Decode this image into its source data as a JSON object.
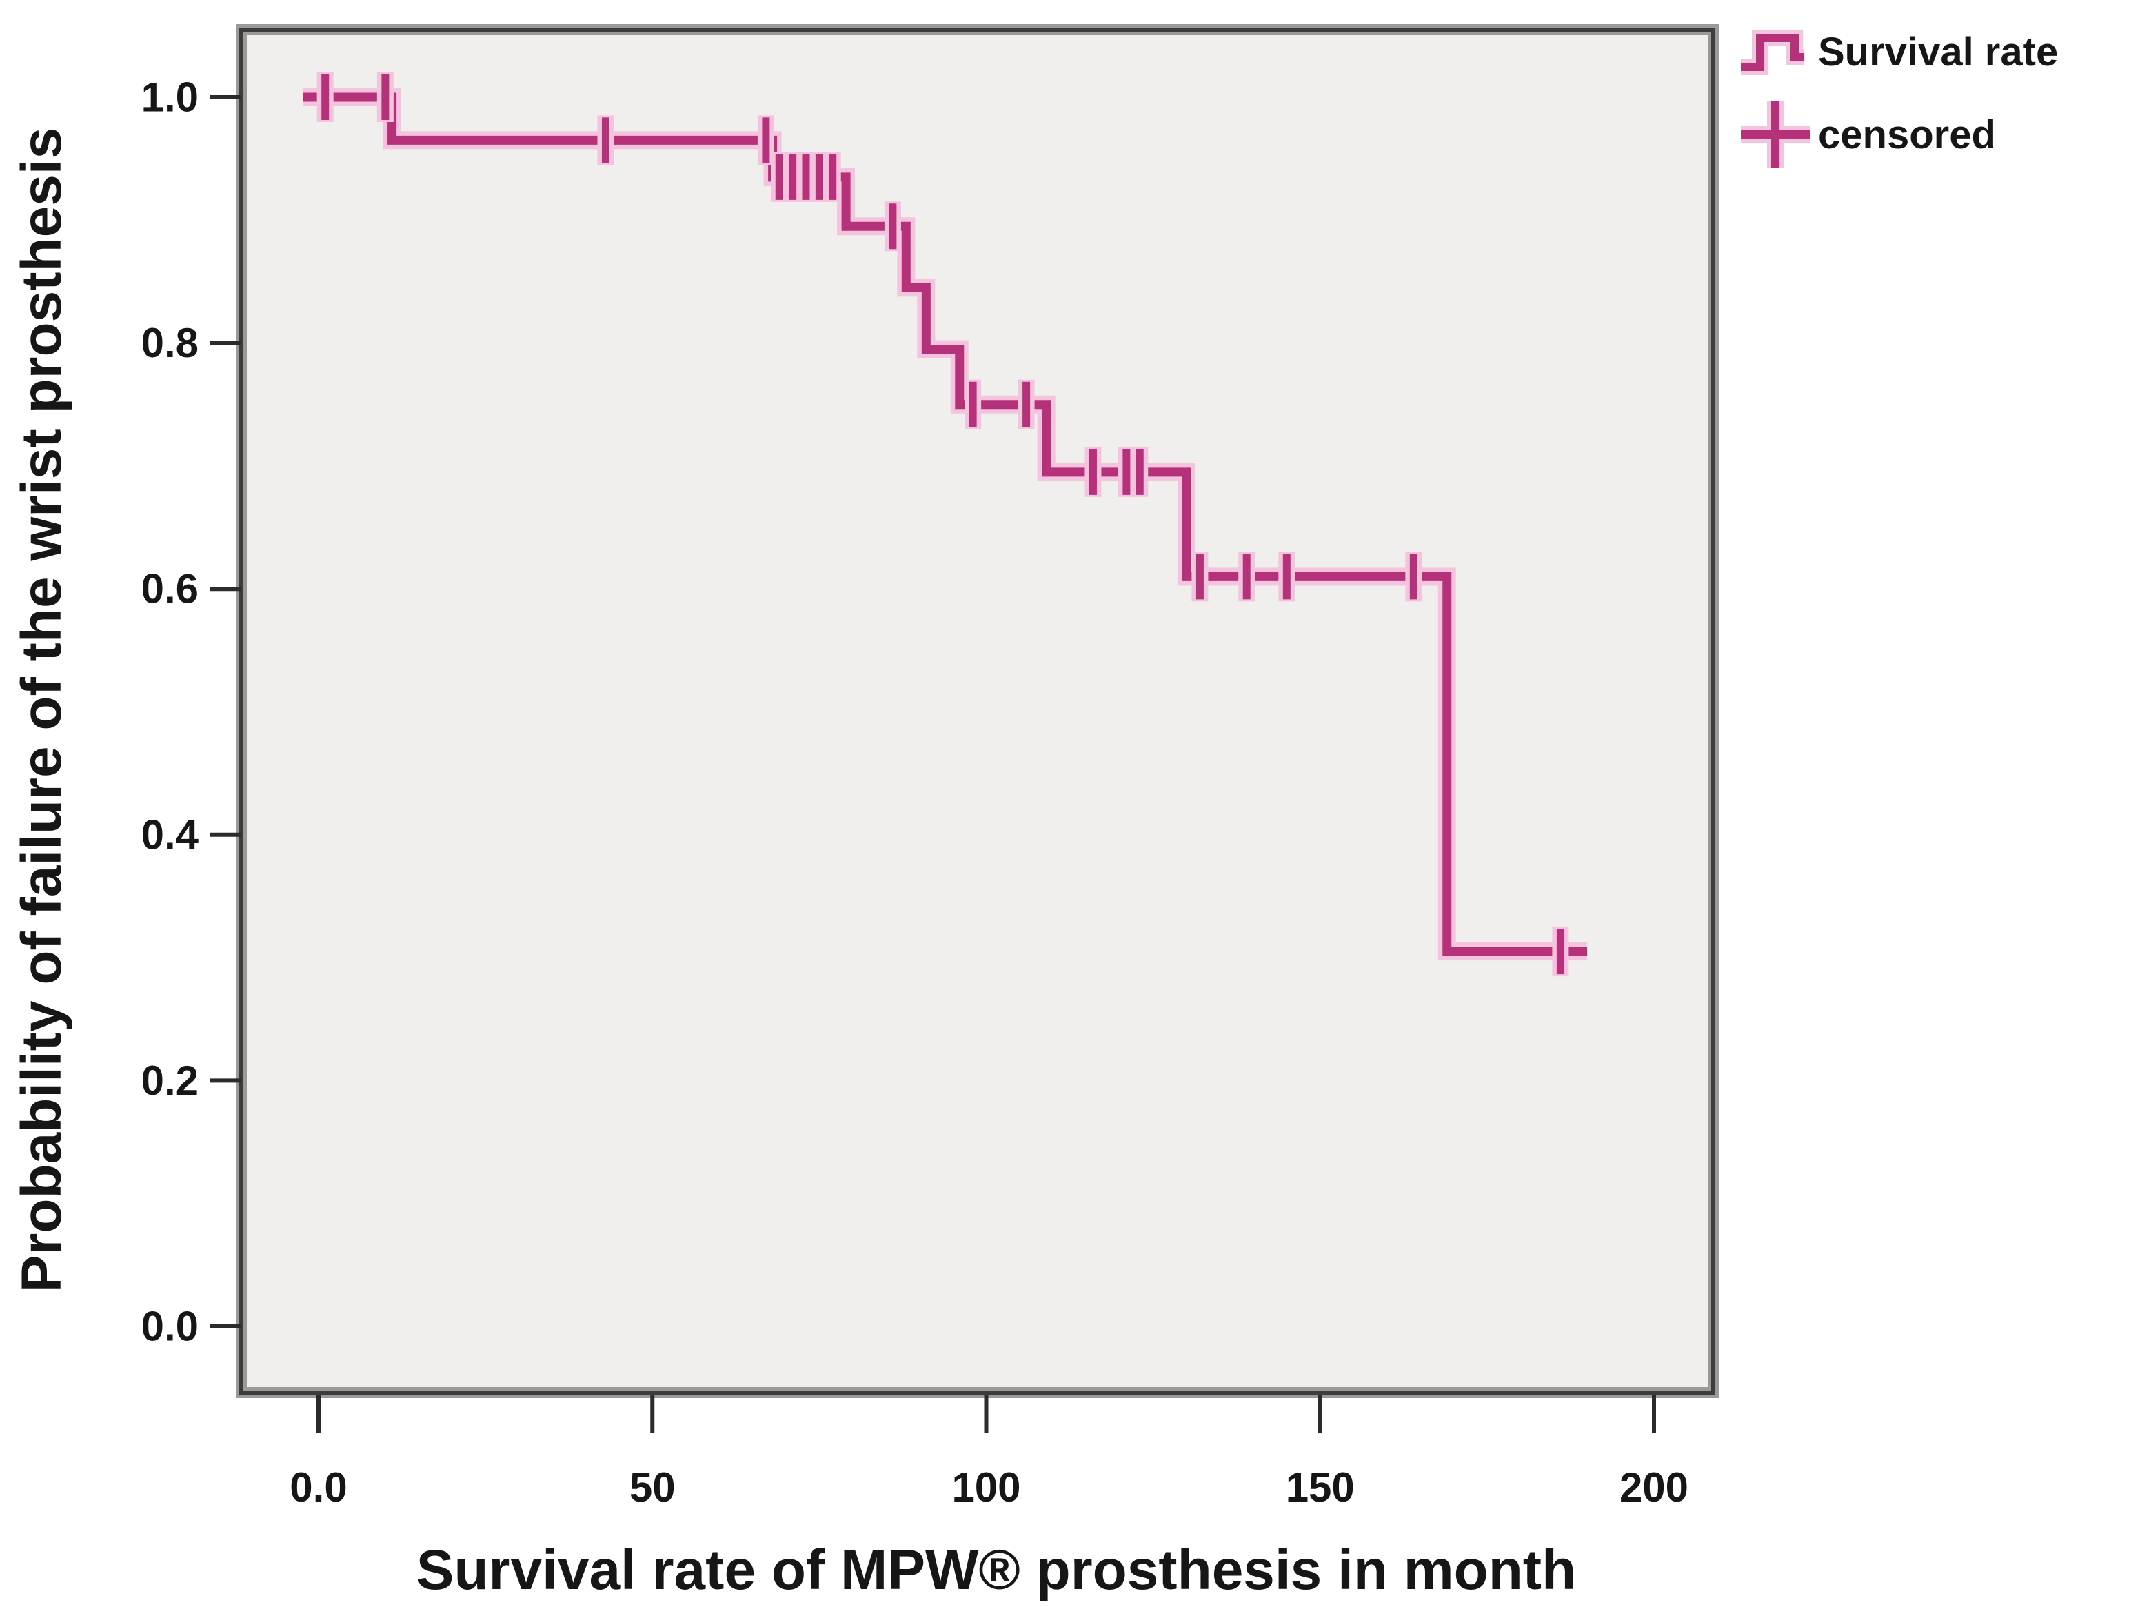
{
  "chart_data": {
    "type": "line",
    "subtype": "kaplan-meier-step",
    "title": "",
    "xlabel": "Survival rate of MPW® prosthesis in month",
    "ylabel": "Probability of failure of the wrist prosthesis",
    "xlim": [
      0,
      200
    ],
    "ylim": [
      0.0,
      1.0
    ],
    "grid": false,
    "legend_position": "top-right-outside",
    "x_ticks": [
      {
        "label": "0.0",
        "value": 0
      },
      {
        "label": "50",
        "value": 50
      },
      {
        "label": "100",
        "value": 100
      },
      {
        "label": "150",
        "value": 150
      },
      {
        "label": "200",
        "value": 200
      }
    ],
    "y_ticks": [
      {
        "label": "1.0",
        "value": 1.0
      },
      {
        "label": "0.8",
        "value": 0.8
      },
      {
        "label": "0.6",
        "value": 0.6
      },
      {
        "label": "0.4",
        "value": 0.4
      },
      {
        "label": "0.2",
        "value": 0.2
      },
      {
        "label": "0.0",
        "value": 0.0
      }
    ],
    "series": [
      {
        "name": "Survival rate",
        "steps": [
          {
            "t": 0,
            "s": 1.0
          },
          {
            "t": 11,
            "s": 0.965
          },
          {
            "t": 68,
            "s": 0.935
          },
          {
            "t": 79,
            "s": 0.895
          },
          {
            "t": 88,
            "s": 0.845
          },
          {
            "t": 91,
            "s": 0.795
          },
          {
            "t": 96,
            "s": 0.75
          },
          {
            "t": 109,
            "s": 0.695
          },
          {
            "t": 130,
            "s": 0.61
          },
          {
            "t": 169,
            "s": 0.305
          }
        ],
        "end_t": 190
      }
    ],
    "censored_points": [
      {
        "t": 1,
        "s": 1.0
      },
      {
        "t": 10,
        "s": 1.0
      },
      {
        "t": 43,
        "s": 0.965
      },
      {
        "t": 67,
        "s": 0.965
      },
      {
        "t": 69,
        "s": 0.935
      },
      {
        "t": 71,
        "s": 0.935
      },
      {
        "t": 73,
        "s": 0.935
      },
      {
        "t": 75,
        "s": 0.935
      },
      {
        "t": 77,
        "s": 0.935
      },
      {
        "t": 86,
        "s": 0.895
      },
      {
        "t": 98,
        "s": 0.75
      },
      {
        "t": 106,
        "s": 0.75
      },
      {
        "t": 116,
        "s": 0.695
      },
      {
        "t": 121,
        "s": 0.695
      },
      {
        "t": 123,
        "s": 0.695
      },
      {
        "t": 132,
        "s": 0.61
      },
      {
        "t": 139,
        "s": 0.61
      },
      {
        "t": 145,
        "s": 0.61
      },
      {
        "t": 164,
        "s": 0.61
      },
      {
        "t": 186,
        "s": 0.305
      }
    ],
    "legend": [
      {
        "label": "Survival rate",
        "glyph": "step-line-icon"
      },
      {
        "label": "censored",
        "glyph": "plus-icon"
      }
    ],
    "colors": {
      "curve": "#b5327a",
      "curve_halo": "#f4c4de",
      "plot_background": "#f0efed",
      "frame_dark": "#3e3c3b",
      "frame_light": "#9a9a98",
      "text": "#161616",
      "page_background": "#ffffff"
    }
  }
}
